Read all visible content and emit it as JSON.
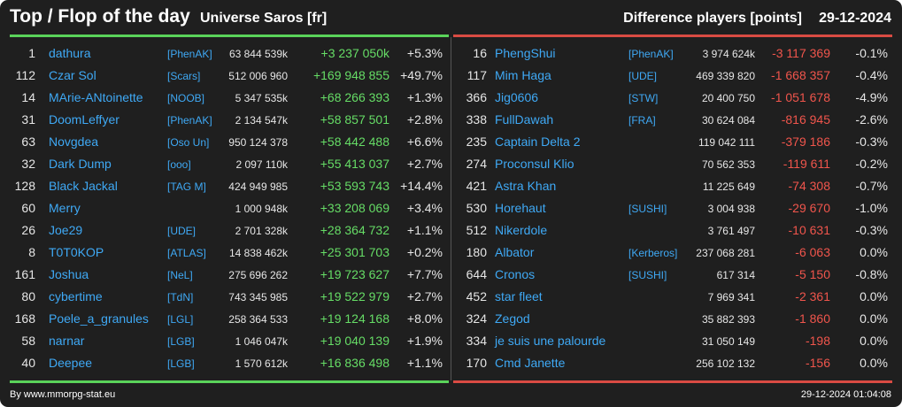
{
  "header": {
    "title": "Top / Flop of the day",
    "universe": "Universe Saros [fr]",
    "diff_label": "Difference players [points]",
    "date": "29-12-2024"
  },
  "top": [
    {
      "rank": "1",
      "name": "dathura",
      "tag": "[PhenAK]",
      "points": "63 844 539k",
      "delta": "+3 237 050k",
      "pct": "+5.3%"
    },
    {
      "rank": "112",
      "name": "Czar Sol",
      "tag": "[Scars]",
      "points": "512 006 960",
      "delta": "+169 948 855",
      "pct": "+49.7%"
    },
    {
      "rank": "14",
      "name": "MArie-ANtoinette",
      "tag": "[NOOB]",
      "points": "5 347 535k",
      "delta": "+68 266 393",
      "pct": "+1.3%"
    },
    {
      "rank": "31",
      "name": "DoomLeffyer",
      "tag": "[PhenAK]",
      "points": "2 134 547k",
      "delta": "+58 857 501",
      "pct": "+2.8%"
    },
    {
      "rank": "63",
      "name": "Novgdea",
      "tag": "[Oso Un]",
      "points": "950 124 378",
      "delta": "+58 442 488",
      "pct": "+6.6%"
    },
    {
      "rank": "32",
      "name": "Dark Dump",
      "tag": "[ooo]",
      "points": "2 097 110k",
      "delta": "+55 413 037",
      "pct": "+2.7%"
    },
    {
      "rank": "128",
      "name": "Black Jackal",
      "tag": "[TAG M]",
      "points": "424 949 985",
      "delta": "+53 593 743",
      "pct": "+14.4%"
    },
    {
      "rank": "60",
      "name": "Merry",
      "tag": "",
      "points": "1 000 948k",
      "delta": "+33 208 069",
      "pct": "+3.4%"
    },
    {
      "rank": "26",
      "name": "Joe29",
      "tag": "[UDE]",
      "points": "2 701 328k",
      "delta": "+28 364 732",
      "pct": "+1.1%"
    },
    {
      "rank": "8",
      "name": "T0T0KOP",
      "tag": "[ATLAS]",
      "points": "14 838 462k",
      "delta": "+25 301 703",
      "pct": "+0.2%"
    },
    {
      "rank": "161",
      "name": "Joshua",
      "tag": "[NeL]",
      "points": "275 696 262",
      "delta": "+19 723 627",
      "pct": "+7.7%"
    },
    {
      "rank": "80",
      "name": "cybertime",
      "tag": "[TdN]",
      "points": "743 345 985",
      "delta": "+19 522 979",
      "pct": "+2.7%"
    },
    {
      "rank": "168",
      "name": "Poele_a_granules",
      "tag": "[LGL]",
      "points": "258 364 533",
      "delta": "+19 124 168",
      "pct": "+8.0%"
    },
    {
      "rank": "58",
      "name": "narnar",
      "tag": "[LGB]",
      "points": "1 046 047k",
      "delta": "+19 040 139",
      "pct": "+1.9%"
    },
    {
      "rank": "40",
      "name": "Deepee",
      "tag": "[LGB]",
      "points": "1 570 612k",
      "delta": "+16 836 498",
      "pct": "+1.1%"
    }
  ],
  "flop": [
    {
      "rank": "16",
      "name": "PhengShui",
      "tag": "[PhenAK]",
      "points": "3 974 624k",
      "delta": "-3 117 369",
      "pct": "-0.1%"
    },
    {
      "rank": "117",
      "name": "Mim Haga",
      "tag": "[UDE]",
      "points": "469 339 820",
      "delta": "-1 668 357",
      "pct": "-0.4%"
    },
    {
      "rank": "366",
      "name": "Jig0606",
      "tag": "[STW]",
      "points": "20 400 750",
      "delta": "-1 051 678",
      "pct": "-4.9%"
    },
    {
      "rank": "338",
      "name": "FullDawah",
      "tag": "[FRA]",
      "points": "30 624 084",
      "delta": "-816 945",
      "pct": "-2.6%"
    },
    {
      "rank": "235",
      "name": "Captain Delta 2",
      "tag": "",
      "points": "119 042 111",
      "delta": "-379 186",
      "pct": "-0.3%"
    },
    {
      "rank": "274",
      "name": "Proconsul Klio",
      "tag": "",
      "points": "70 562 353",
      "delta": "-119 611",
      "pct": "-0.2%"
    },
    {
      "rank": "421",
      "name": "Astra Khan",
      "tag": "",
      "points": "11 225 649",
      "delta": "-74 308",
      "pct": "-0.7%"
    },
    {
      "rank": "530",
      "name": "Horehaut",
      "tag": "[SUSHI]",
      "points": "3 004 938",
      "delta": "-29 670",
      "pct": "-1.0%"
    },
    {
      "rank": "512",
      "name": "Nikerdole",
      "tag": "",
      "points": "3 761 497",
      "delta": "-10 631",
      "pct": "-0.3%"
    },
    {
      "rank": "180",
      "name": "Albator",
      "tag": "[Kerberos]",
      "points": "237 068 281",
      "delta": "-6 063",
      "pct": "0.0%"
    },
    {
      "rank": "644",
      "name": "Cronos",
      "tag": "[SUSHI]",
      "points": "617 314",
      "delta": "-5 150",
      "pct": "-0.8%"
    },
    {
      "rank": "452",
      "name": "star fleet",
      "tag": "",
      "points": "7 969 341",
      "delta": "-2 361",
      "pct": "0.0%"
    },
    {
      "rank": "324",
      "name": "Zegod",
      "tag": "",
      "points": "35 882 393",
      "delta": "-1 860",
      "pct": "0.0%"
    },
    {
      "rank": "334",
      "name": "je suis une palourde",
      "tag": "",
      "points": "31 050 149",
      "delta": "-198",
      "pct": "0.0%"
    },
    {
      "rank": "170",
      "name": "Cmd Janette",
      "tag": "",
      "points": "256 102 132",
      "delta": "-156",
      "pct": "0.0%"
    }
  ],
  "footer": {
    "source": "By www.mmorpg-stat.eu",
    "timestamp": "29-12-2024 01:04:08"
  },
  "colors": {
    "background": "#1f1f1f",
    "link": "#3fa9f5",
    "positive": "#66dd66",
    "negative": "#f0554c",
    "top_line": "#5ad35a",
    "flop_line": "#d94b43"
  }
}
